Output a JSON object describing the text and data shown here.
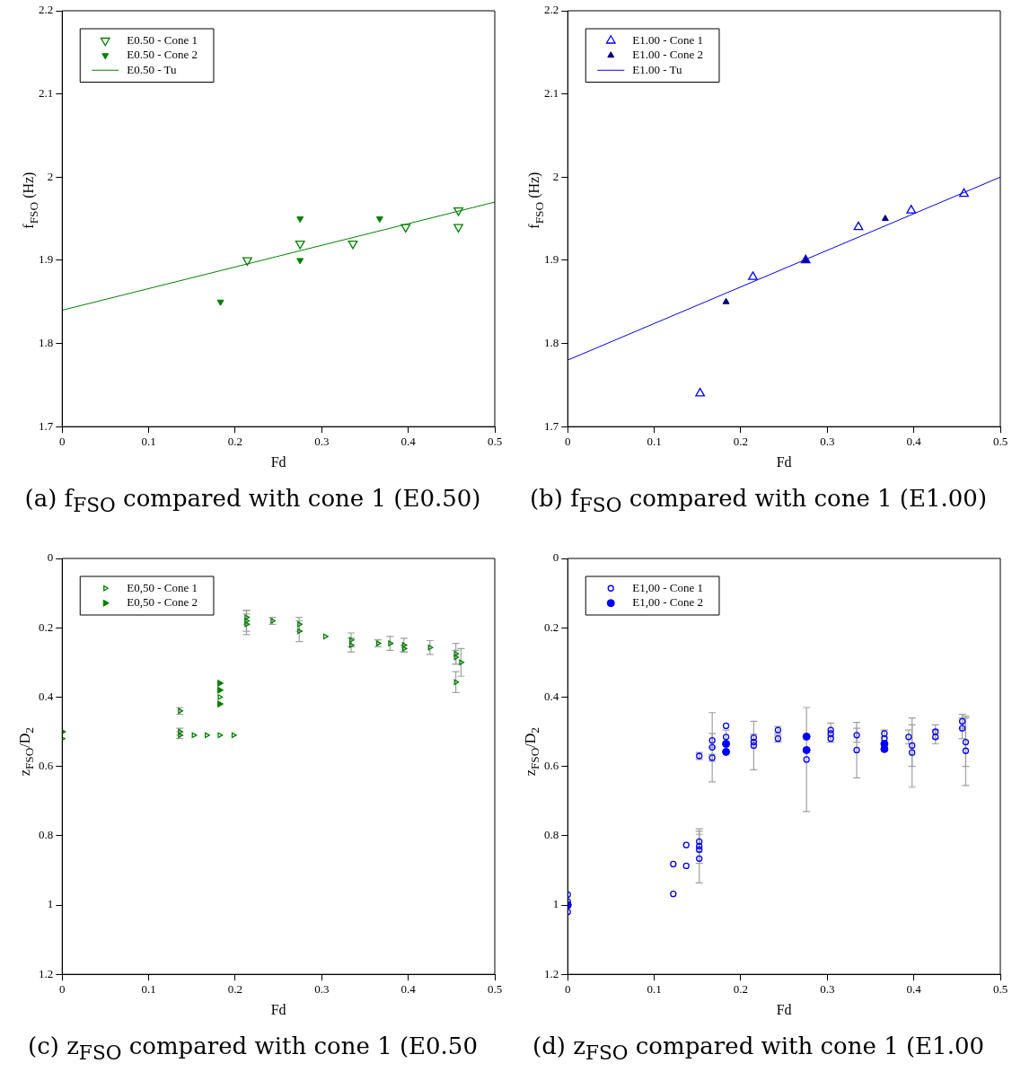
{
  "chart_data": [
    {
      "type": "scatter",
      "title": "(a) f$_{FSO}$ compared with cone 1 (E0.50)",
      "xlabel": "Fd",
      "ylabel": "f$_{FSO}$ (Hz)",
      "xlim": [
        0,
        0.5
      ],
      "xticks": [
        0,
        0.1,
        0.2,
        0.3,
        0.4,
        0.5
      ],
      "ylim": [
        1.7,
        2.2
      ],
      "yticks": [
        1.7,
        1.8,
        1.9,
        2,
        2.1,
        2.2
      ],
      "legend": "top left",
      "marker": "triangle",
      "series": [
        {
          "name": "E0.50 - Cone 1",
          "color": "#008000",
          "x": [
            0.214,
            0.275,
            0.336,
            0.397,
            0.458,
            0.458
          ],
          "values": [
            1.9,
            1.92,
            1.92,
            1.94,
            1.96,
            1.94
          ]
        },
        {
          "name": "E0.50 - Cone 2",
          "color": "#008000",
          "x": [
            0.183,
            0.275,
            0.275,
            0.367
          ],
          "values": [
            1.85,
            1.95,
            1.9,
            1.95
          ]
        },
        {
          "name": "E0.50 - Tu",
          "type": "line",
          "marker": "none",
          "color": "#008000",
          "x": [
            0,
            0.5
          ],
          "values": [
            1.84,
            1.97
          ]
        }
      ]
    },
    {
      "type": "scatter",
      "title": "(b) f$_{FSO}$ compared with cone 1 (E1.00)",
      "xlabel": "Fd",
      "ylabel": "f$_{FSO}$ (Hz)",
      "xlim": [
        0,
        0.5
      ],
      "xticks": [
        0,
        0.1,
        0.2,
        0.3,
        0.4,
        0.5
      ],
      "ylim": [
        1.7,
        2.2
      ],
      "yticks": [
        1.7,
        1.8,
        1.9,
        2,
        2.1,
        2.2
      ],
      "legend": "top left",
      "marker": "triangle",
      "series": [
        {
          "name": "E1.00 - Cone 1",
          "color": "#0000ff",
          "x": [
            0.153,
            0.214,
            0.275,
            0.336,
            0.397,
            0.458
          ],
          "values": [
            1.74,
            1.88,
            1.9,
            1.94,
            1.96,
            1.98
          ]
        },
        {
          "name": "E1.00 - Cone 2",
          "color": "#00007f",
          "x": [
            0.183,
            0.275,
            0.367
          ],
          "values": [
            1.85,
            1.9,
            1.95
          ]
        },
        {
          "name": "E1.00 - Tu",
          "type": "line",
          "marker": "none",
          "color": "#0000ff",
          "x": [
            0,
            0.5
          ],
          "values": [
            1.78,
            2.0
          ]
        }
      ]
    },
    {
      "type": "scatter",
      "title": "(c) z$_{FSO}$ compared with cone 1 (E0.50",
      "xlabel": "Fd",
      "ylabel": "z$_{FSO}$/D$_{2}$",
      "xlim": [
        0,
        0.5
      ],
      "xticks": [
        0,
        0.1,
        0.2,
        0.3,
        0.4,
        0.5
      ],
      "ylim": [
        1.2,
        0
      ],
      "yticks": [
        0,
        0.2,
        0.4,
        0.6,
        0.8,
        1,
        1.2
      ],
      "legend": "top left",
      "marker": "triangle",
      "series": [
        {
          "name": "E0,50 - Cone 1",
          "color": "#008000",
          "x": [
            0,
            0.136,
            0.136,
            0.136,
            0.152,
            0.167,
            0.182,
            0.198,
            0.182,
            0.213,
            0.213,
            0.213,
            0.243,
            0.274,
            0.274,
            0.304,
            0.334,
            0.334,
            0.365,
            0.379,
            0.395,
            0.395,
            0.425,
            0.455,
            0.455,
            0.461,
            0.455
          ],
          "values": [
            0.52,
            0.44,
            0.5,
            0.51,
            0.51,
            0.51,
            0.51,
            0.51,
            0.4,
            0.17,
            0.18,
            0.19,
            0.18,
            0.19,
            0.21,
            0.225,
            0.235,
            0.25,
            0.245,
            0.245,
            0.25,
            0.26,
            0.257,
            0.275,
            0.285,
            0.3,
            0.357
          ],
          "errors": [
            null,
            0.01,
            0.01,
            0.01,
            null,
            null,
            null,
            null,
            null,
            0.02,
            0.03,
            0.03,
            0.01,
            0.02,
            0.03,
            null,
            0.02,
            0.02,
            0.01,
            0.02,
            0.02,
            0.01,
            0.02,
            0.03,
            0.02,
            0.04,
            0.03
          ]
        },
        {
          "name": "E0,50 - Cone 2",
          "color": "#008000",
          "x": [
            0,
            0.182,
            0.182,
            0.182
          ],
          "values": [
            0.5,
            0.36,
            0.38,
            0.42
          ]
        }
      ]
    },
    {
      "type": "scatter",
      "title": "(d) z$_{FSO}$ compared with cone 1 (E1.00",
      "xlabel": "Fd",
      "ylabel": "z$_{FSO}$/D$_{2}$",
      "xlim": [
        0,
        0.5
      ],
      "xticks": [
        0,
        0.1,
        0.2,
        0.3,
        0.4,
        0.5
      ],
      "ylim": [
        1.2,
        0
      ],
      "yticks": [
        0,
        0.2,
        0.4,
        0.6,
        0.8,
        1,
        1.2
      ],
      "legend": "top left",
      "marker": "circle",
      "series": [
        {
          "name": "E1,00 - Cone 1",
          "color": "#0000ff",
          "x": [
            0,
            0,
            0,
            0.122,
            0.122,
            0.137,
            0.137,
            0.152,
            0.152,
            0.152,
            0.152,
            0.152,
            0.167,
            0.167,
            0.167,
            0.183,
            0.183,
            0.215,
            0.215,
            0.215,
            0.243,
            0.243,
            0.276,
            0.304,
            0.304,
            0.304,
            0.334,
            0.334,
            0.366,
            0.366,
            0.394,
            0.398,
            0.398,
            0.425,
            0.425,
            0.456,
            0.456,
            0.46,
            0.46
          ],
          "values": [
            0.97,
            0.99,
            1.02,
            0.882,
            0.968,
            0.827,
            0.887,
            0.57,
            0.817,
            0.83,
            0.84,
            0.866,
            0.525,
            0.545,
            0.575,
            0.483,
            0.515,
            0.517,
            0.53,
            0.54,
            0.495,
            0.52,
            0.58,
            0.495,
            0.505,
            0.52,
            0.51,
            0.553,
            0.505,
            0.52,
            0.515,
            0.54,
            0.56,
            0.5,
            0.515,
            0.47,
            0.49,
            0.53,
            0.555
          ],
          "errors": [
            null,
            null,
            null,
            null,
            null,
            null,
            null,
            0.01,
            0.03,
            0.05,
            null,
            0.07,
            0.02,
            0.1,
            0.01,
            null,
            0.02,
            0.01,
            null,
            0.07,
            0.01,
            0.01,
            0.15,
            0.02,
            null,
            0.01,
            0.02,
            0.08,
            0.01,
            null,
            0.02,
            0.06,
            0.1,
            0.02,
            0.02,
            0.02,
            0.03,
            0.07,
            0.1
          ]
        },
        {
          "name": "E1,00 - Cone 2",
          "color": "#0000ff",
          "x": [
            0,
            0.183,
            0.183,
            0.276,
            0.276,
            0.366,
            0.366
          ],
          "values": [
            1.0,
            0.535,
            0.558,
            0.514,
            0.553,
            0.535,
            0.55
          ]
        }
      ]
    }
  ]
}
